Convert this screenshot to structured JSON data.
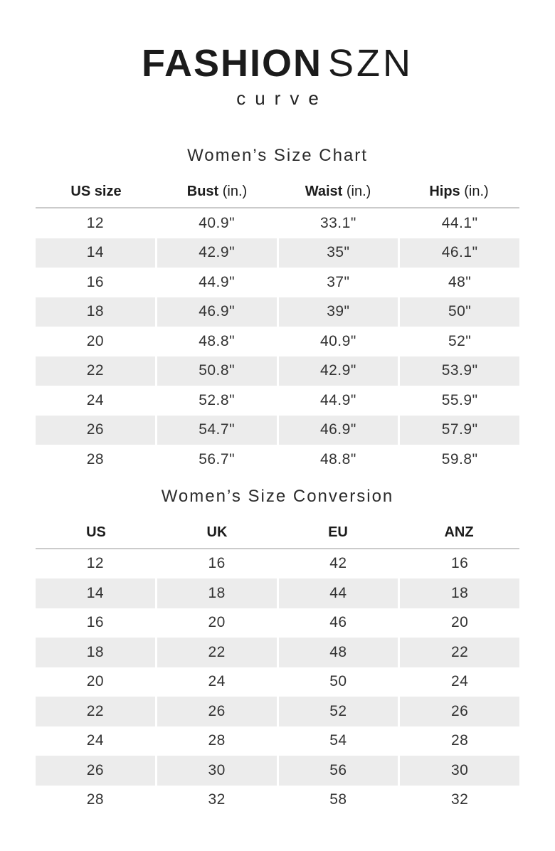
{
  "brand": {
    "name_bold": "FASHION",
    "name_light": "SZN",
    "tagline": "curve"
  },
  "size_chart": {
    "title": "Women’s Size Chart",
    "columns": [
      {
        "label": "US size",
        "unit": ""
      },
      {
        "label": "Bust",
        "unit": " (in.)"
      },
      {
        "label": "Waist",
        "unit": " (in.)"
      },
      {
        "label": "Hips",
        "unit": " (in.)"
      }
    ],
    "rows": [
      [
        "12",
        "40.9\"",
        "33.1\"",
        "44.1\""
      ],
      [
        "14",
        "42.9\"",
        "35\"",
        "46.1\""
      ],
      [
        "16",
        "44.9\"",
        "37\"",
        "48\""
      ],
      [
        "18",
        "46.9\"",
        "39\"",
        "50\""
      ],
      [
        "20",
        "48.8\"",
        "40.9\"",
        "52\""
      ],
      [
        "22",
        "50.8\"",
        "42.9\"",
        "53.9\""
      ],
      [
        "24",
        "52.8\"",
        "44.9\"",
        "55.9\""
      ],
      [
        "26",
        "54.7\"",
        "46.9\"",
        "57.9\""
      ],
      [
        "28",
        "56.7\"",
        "48.8\"",
        "59.8\""
      ]
    ]
  },
  "size_conversion": {
    "title": "Women’s Size Conversion",
    "columns": [
      {
        "label": "US",
        "unit": ""
      },
      {
        "label": "UK",
        "unit": ""
      },
      {
        "label": "EU",
        "unit": ""
      },
      {
        "label": "ANZ",
        "unit": ""
      }
    ],
    "rows": [
      [
        "12",
        "16",
        "42",
        "16"
      ],
      [
        "14",
        "18",
        "44",
        "18"
      ],
      [
        "16",
        "20",
        "46",
        "20"
      ],
      [
        "18",
        "22",
        "48",
        "22"
      ],
      [
        "20",
        "24",
        "50",
        "24"
      ],
      [
        "22",
        "26",
        "52",
        "26"
      ],
      [
        "24",
        "28",
        "54",
        "28"
      ],
      [
        "26",
        "30",
        "56",
        "30"
      ],
      [
        "28",
        "32",
        "58",
        "32"
      ]
    ]
  },
  "colors": {
    "text": "#2d2d2d",
    "heading_text": "#1b1b1b",
    "stripe": "#ececec",
    "rule": "#cbcbcb",
    "background": "#ffffff"
  }
}
